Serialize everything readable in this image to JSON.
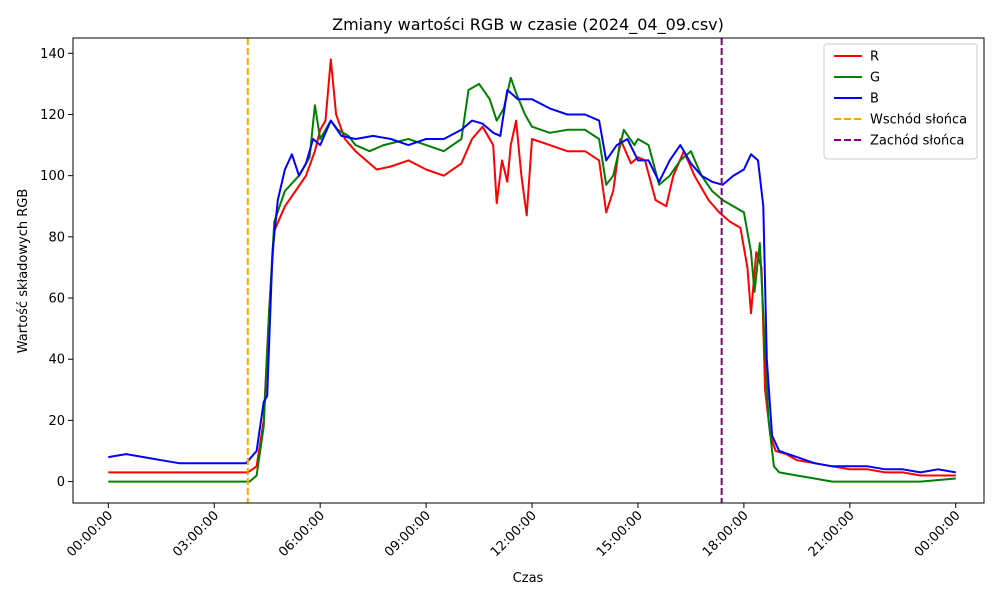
{
  "chart_data": {
    "type": "line",
    "title": "Zmiany wartości RGB w czasie (2024_04_09.csv)",
    "xlabel": "Czas",
    "ylabel": "Wartość składowych RGB",
    "x_unit": "hours",
    "xlim": [
      -1.0,
      24.8
    ],
    "ylim": [
      -7,
      145
    ],
    "x_ticks": [
      {
        "x": 0,
        "label": "00:00:00"
      },
      {
        "x": 3,
        "label": "03:00:00"
      },
      {
        "x": 6,
        "label": "06:00:00"
      },
      {
        "x": 9,
        "label": "09:00:00"
      },
      {
        "x": 12,
        "label": "12:00:00"
      },
      {
        "x": 15,
        "label": "15:00:00"
      },
      {
        "x": 18,
        "label": "18:00:00"
      },
      {
        "x": 21,
        "label": "21:00:00"
      },
      {
        "x": 24,
        "label": "00:00:00"
      }
    ],
    "y_ticks": [
      0,
      20,
      40,
      60,
      80,
      100,
      120,
      140
    ],
    "grid": false,
    "legend_position": "top-right",
    "series": [
      {
        "name": "R",
        "color": "#ff0000",
        "points": [
          [
            0,
            3
          ],
          [
            1,
            3
          ],
          [
            2,
            3
          ],
          [
            3.5,
            3
          ],
          [
            3.95,
            3
          ],
          [
            4.2,
            5
          ],
          [
            4.4,
            20
          ],
          [
            4.55,
            55
          ],
          [
            4.7,
            82
          ],
          [
            5.0,
            90
          ],
          [
            5.3,
            95
          ],
          [
            5.6,
            100
          ],
          [
            5.85,
            108
          ],
          [
            6.0,
            115
          ],
          [
            6.15,
            118
          ],
          [
            6.3,
            138
          ],
          [
            6.45,
            120
          ],
          [
            6.7,
            112
          ],
          [
            7.0,
            108
          ],
          [
            7.3,
            105
          ],
          [
            7.6,
            102
          ],
          [
            8.0,
            103
          ],
          [
            8.5,
            105
          ],
          [
            9.0,
            102
          ],
          [
            9.5,
            100
          ],
          [
            10.0,
            104
          ],
          [
            10.3,
            112
          ],
          [
            10.6,
            116
          ],
          [
            10.9,
            110
          ],
          [
            11.0,
            91
          ],
          [
            11.15,
            105
          ],
          [
            11.3,
            98
          ],
          [
            11.4,
            110
          ],
          [
            11.55,
            118
          ],
          [
            11.7,
            100
          ],
          [
            11.85,
            87
          ],
          [
            12.0,
            112
          ],
          [
            12.5,
            110
          ],
          [
            13.0,
            108
          ],
          [
            13.5,
            108
          ],
          [
            13.9,
            105
          ],
          [
            14.1,
            88
          ],
          [
            14.3,
            95
          ],
          [
            14.5,
            112
          ],
          [
            14.8,
            104
          ],
          [
            15.0,
            106
          ],
          [
            15.2,
            105
          ],
          [
            15.5,
            92
          ],
          [
            15.8,
            90
          ],
          [
            16.0,
            100
          ],
          [
            16.3,
            108
          ],
          [
            16.6,
            100
          ],
          [
            17.0,
            92
          ],
          [
            17.3,
            88
          ],
          [
            17.6,
            85
          ],
          [
            17.9,
            83
          ],
          [
            18.1,
            70
          ],
          [
            18.2,
            55
          ],
          [
            18.35,
            75
          ],
          [
            18.5,
            70
          ],
          [
            18.6,
            30
          ],
          [
            18.75,
            15
          ],
          [
            18.9,
            10
          ],
          [
            19.2,
            9
          ],
          [
            19.5,
            7
          ],
          [
            20.0,
            6
          ],
          [
            20.5,
            5
          ],
          [
            21.0,
            4
          ],
          [
            21.5,
            4
          ],
          [
            22.0,
            3
          ],
          [
            22.5,
            3
          ],
          [
            23.0,
            2
          ],
          [
            24.0,
            2
          ]
        ]
      },
      {
        "name": "G",
        "color": "#008000",
        "points": [
          [
            0,
            0
          ],
          [
            1,
            0
          ],
          [
            2,
            0
          ],
          [
            3.5,
            0
          ],
          [
            4.0,
            0
          ],
          [
            4.2,
            2
          ],
          [
            4.4,
            18
          ],
          [
            4.55,
            55
          ],
          [
            4.7,
            85
          ],
          [
            5.0,
            95
          ],
          [
            5.4,
            100
          ],
          [
            5.7,
            106
          ],
          [
            5.85,
            123
          ],
          [
            6.0,
            112
          ],
          [
            6.3,
            118
          ],
          [
            6.5,
            115
          ],
          [
            6.8,
            113
          ],
          [
            7.0,
            110
          ],
          [
            7.4,
            108
          ],
          [
            7.8,
            110
          ],
          [
            8.5,
            112
          ],
          [
            9.0,
            110
          ],
          [
            9.5,
            108
          ],
          [
            10.0,
            112
          ],
          [
            10.2,
            128
          ],
          [
            10.5,
            130
          ],
          [
            10.8,
            125
          ],
          [
            11.0,
            118
          ],
          [
            11.2,
            122
          ],
          [
            11.4,
            132
          ],
          [
            11.55,
            127
          ],
          [
            11.8,
            120
          ],
          [
            12.0,
            116
          ],
          [
            12.5,
            114
          ],
          [
            13.0,
            115
          ],
          [
            13.5,
            115
          ],
          [
            13.9,
            112
          ],
          [
            14.1,
            97
          ],
          [
            14.3,
            100
          ],
          [
            14.6,
            115
          ],
          [
            14.9,
            110
          ],
          [
            15.0,
            112
          ],
          [
            15.3,
            110
          ],
          [
            15.6,
            97
          ],
          [
            15.9,
            100
          ],
          [
            16.2,
            105
          ],
          [
            16.5,
            108
          ],
          [
            16.8,
            100
          ],
          [
            17.1,
            95
          ],
          [
            17.4,
            92
          ],
          [
            17.7,
            90
          ],
          [
            18.0,
            88
          ],
          [
            18.2,
            75
          ],
          [
            18.3,
            62
          ],
          [
            18.45,
            78
          ],
          [
            18.55,
            55
          ],
          [
            18.7,
            20
          ],
          [
            18.85,
            5
          ],
          [
            19.0,
            3
          ],
          [
            19.5,
            2
          ],
          [
            20.0,
            1
          ],
          [
            20.5,
            0
          ],
          [
            21.0,
            0
          ],
          [
            22.0,
            0
          ],
          [
            23.0,
            0
          ],
          [
            24.0,
            1
          ]
        ]
      },
      {
        "name": "B",
        "color": "#0000ff",
        "points": [
          [
            0,
            8
          ],
          [
            0.5,
            9
          ],
          [
            1.0,
            8
          ],
          [
            1.5,
            7
          ],
          [
            2.0,
            6
          ],
          [
            2.5,
            6
          ],
          [
            3.0,
            6
          ],
          [
            3.5,
            6
          ],
          [
            3.9,
            6
          ],
          [
            4.2,
            10
          ],
          [
            4.4,
            26
          ],
          [
            4.5,
            28
          ],
          [
            4.65,
            75
          ],
          [
            4.8,
            92
          ],
          [
            5.0,
            102
          ],
          [
            5.2,
            107
          ],
          [
            5.4,
            100
          ],
          [
            5.6,
            104
          ],
          [
            5.8,
            112
          ],
          [
            6.0,
            110
          ],
          [
            6.3,
            118
          ],
          [
            6.6,
            113
          ],
          [
            7.0,
            112
          ],
          [
            7.5,
            113
          ],
          [
            8.0,
            112
          ],
          [
            8.5,
            110
          ],
          [
            9.0,
            112
          ],
          [
            9.5,
            112
          ],
          [
            10.0,
            115
          ],
          [
            10.3,
            118
          ],
          [
            10.6,
            117
          ],
          [
            10.9,
            114
          ],
          [
            11.1,
            113
          ],
          [
            11.3,
            128
          ],
          [
            11.6,
            125
          ],
          [
            12.0,
            125
          ],
          [
            12.5,
            122
          ],
          [
            13.0,
            120
          ],
          [
            13.5,
            120
          ],
          [
            13.9,
            118
          ],
          [
            14.1,
            105
          ],
          [
            14.4,
            110
          ],
          [
            14.7,
            112
          ],
          [
            15.0,
            105
          ],
          [
            15.3,
            105
          ],
          [
            15.6,
            98
          ],
          [
            15.9,
            105
          ],
          [
            16.2,
            110
          ],
          [
            16.5,
            104
          ],
          [
            16.8,
            100
          ],
          [
            17.1,
            98
          ],
          [
            17.4,
            97
          ],
          [
            17.7,
            100
          ],
          [
            18.0,
            102
          ],
          [
            18.2,
            107
          ],
          [
            18.4,
            105
          ],
          [
            18.55,
            90
          ],
          [
            18.65,
            40
          ],
          [
            18.8,
            15
          ],
          [
            19.0,
            10
          ],
          [
            19.5,
            8
          ],
          [
            20.0,
            6
          ],
          [
            20.5,
            5
          ],
          [
            21.0,
            5
          ],
          [
            21.5,
            5
          ],
          [
            22.0,
            4
          ],
          [
            22.5,
            4
          ],
          [
            23.0,
            3
          ],
          [
            23.5,
            4
          ],
          [
            24.0,
            3
          ]
        ]
      }
    ],
    "vlines": [
      {
        "name": "Wschód słońca",
        "x": 3.95,
        "color": "#ffa500",
        "style": "dashed"
      },
      {
        "name": "Zachód słońca",
        "x": 17.37,
        "color": "#800080",
        "style": "dashed"
      }
    ]
  }
}
